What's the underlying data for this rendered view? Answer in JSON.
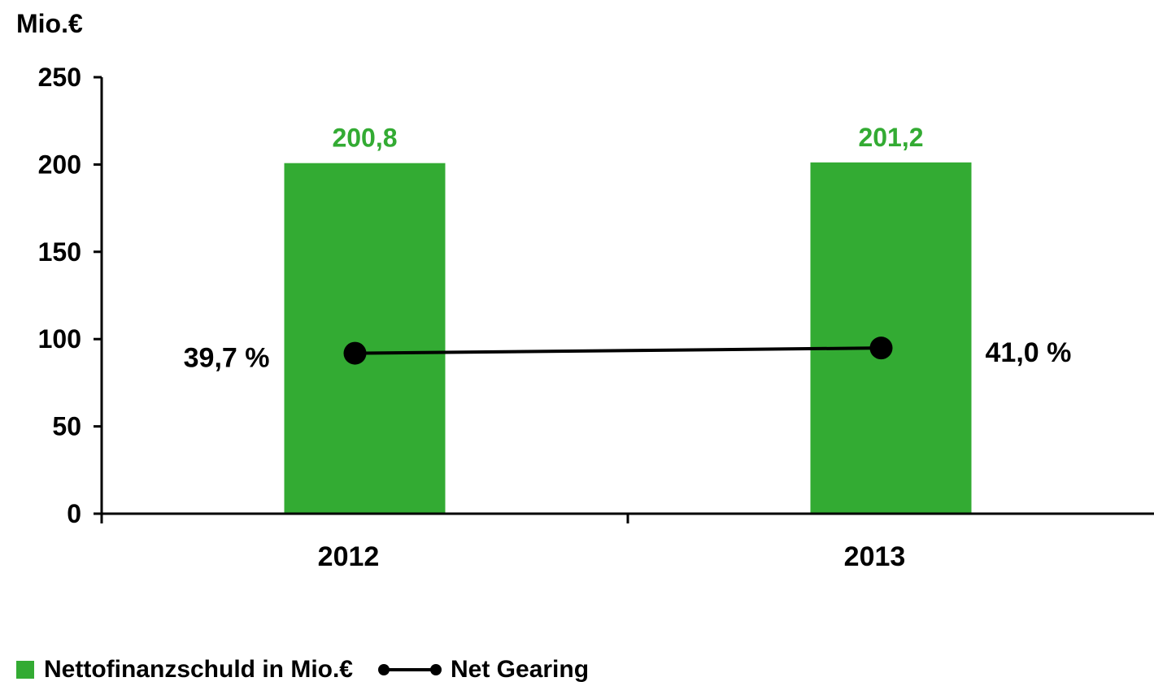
{
  "chart_data": {
    "type": "bar",
    "ylabel": "Mio.€",
    "categories": [
      "2012",
      "2013"
    ],
    "ylim": [
      0,
      250
    ],
    "yticks": [
      0,
      50,
      100,
      150,
      200,
      250
    ],
    "ytick_labels": [
      "0",
      "50",
      "100",
      "150",
      "200",
      "250"
    ],
    "grid": false,
    "legend_position": "bottom-left",
    "series": [
      {
        "name": "Nettofinanzschuld in Mio.€",
        "type": "bar",
        "values": [
          200.8,
          201.2
        ],
        "data_labels": [
          "200,8",
          "201,2"
        ],
        "color": "#33ab33",
        "label_color": "#33ab33"
      },
      {
        "name": "Net Gearing",
        "type": "line",
        "values": [
          39.7,
          41.0
        ],
        "unit": "%",
        "secondary_axis_range": [
          0,
          108
        ],
        "data_labels": [
          "39,7 %",
          "41,0 %"
        ],
        "color": "#000000"
      }
    ]
  },
  "legend": {
    "bar_label": "Nettofinanzschuld in Mio.€",
    "line_label": "Net Gearing"
  }
}
